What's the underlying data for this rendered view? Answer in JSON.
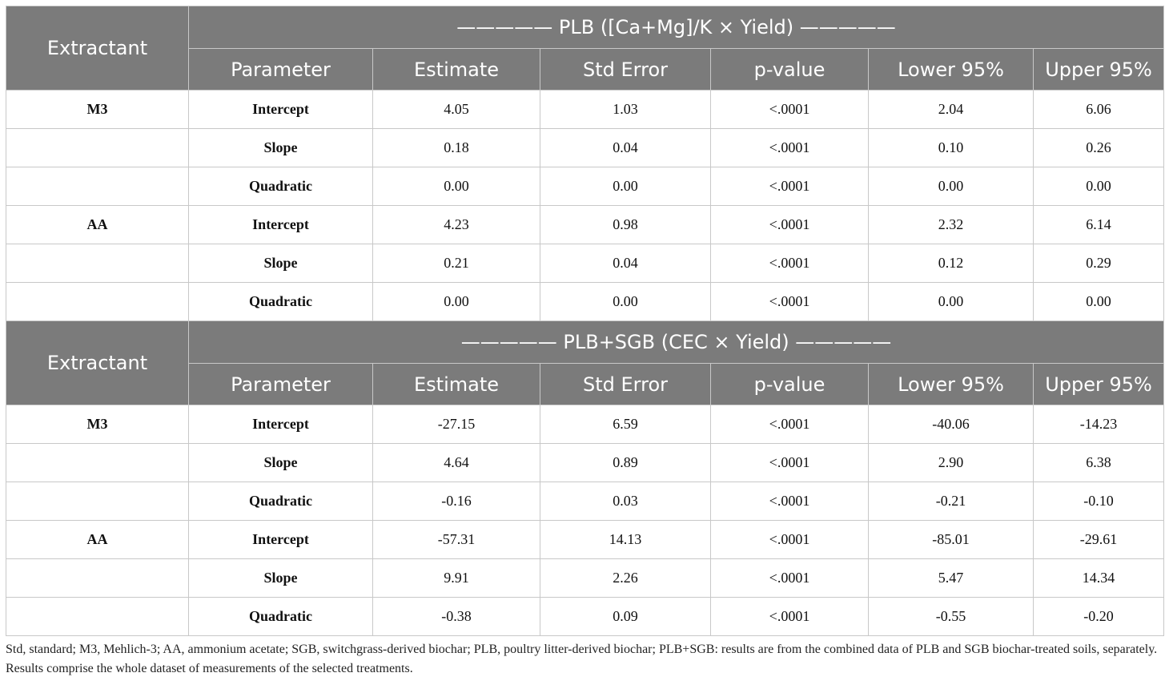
{
  "columns": {
    "extractant": "Extractant",
    "parameter": "Parameter",
    "estimate": "Estimate",
    "std_error": "Std Error",
    "p_value": "p-value",
    "lower": "Lower 95%",
    "upper": "Upper 95%"
  },
  "sections": [
    {
      "title": "————— PLB ([Ca+Mg]/K × Yield) —————",
      "rows": [
        {
          "extractant": "M3",
          "parameter": "Intercept",
          "estimate": "4.05",
          "std_error": "1.03",
          "p_value": "<.0001",
          "lower": "2.04",
          "upper": "6.06"
        },
        {
          "extractant": "",
          "parameter": "Slope",
          "estimate": "0.18",
          "std_error": "0.04",
          "p_value": "<.0001",
          "lower": "0.10",
          "upper": "0.26"
        },
        {
          "extractant": "",
          "parameter": "Quadratic",
          "estimate": "0.00",
          "std_error": "0.00",
          "p_value": "<.0001",
          "lower": "0.00",
          "upper": "0.00"
        },
        {
          "extractant": "AA",
          "parameter": "Intercept",
          "estimate": "4.23",
          "std_error": "0.98",
          "p_value": "<.0001",
          "lower": "2.32",
          "upper": "6.14"
        },
        {
          "extractant": "",
          "parameter": "Slope",
          "estimate": "0.21",
          "std_error": "0.04",
          "p_value": "<.0001",
          "lower": "0.12",
          "upper": "0.29"
        },
        {
          "extractant": "",
          "parameter": "Quadratic",
          "estimate": "0.00",
          "std_error": "0.00",
          "p_value": "<.0001",
          "lower": "0.00",
          "upper": "0.00"
        }
      ]
    },
    {
      "title": "————— PLB+SGB (CEC × Yield) —————",
      "rows": [
        {
          "extractant": "M3",
          "parameter": "Intercept",
          "estimate": "-27.15",
          "std_error": "6.59",
          "p_value": "<.0001",
          "lower": "-40.06",
          "upper": "-14.23"
        },
        {
          "extractant": "",
          "parameter": "Slope",
          "estimate": "4.64",
          "std_error": "0.89",
          "p_value": "<.0001",
          "lower": "2.90",
          "upper": "6.38"
        },
        {
          "extractant": "",
          "parameter": "Quadratic",
          "estimate": "-0.16",
          "std_error": "0.03",
          "p_value": "<.0001",
          "lower": "-0.21",
          "upper": "-0.10"
        },
        {
          "extractant": "AA",
          "parameter": "Intercept",
          "estimate": "-57.31",
          "std_error": "14.13",
          "p_value": "<.0001",
          "lower": "-85.01",
          "upper": "-29.61"
        },
        {
          "extractant": "",
          "parameter": "Slope",
          "estimate": "9.91",
          "std_error": "2.26",
          "p_value": "<.0001",
          "lower": "5.47",
          "upper": "14.34"
        },
        {
          "extractant": "",
          "parameter": "Quadratic",
          "estimate": "-0.38",
          "std_error": "0.09",
          "p_value": "<.0001",
          "lower": "-0.55",
          "upper": "-0.20"
        }
      ]
    }
  ],
  "footnote": "Std, standard; M3, Mehlich-3; AA, ammonium acetate; SGB, switchgrass-derived biochar; PLB, poultry litter-derived biochar; PLB+SGB: results are from the combined data of PLB and SGB biochar-treated soils, separately. Results comprise the whole dataset of measurements of the selected treatments.",
  "colors": {
    "header_bg": "#7b7b7b",
    "header_text": "#ffffff",
    "grid": "#c8c8c8"
  }
}
